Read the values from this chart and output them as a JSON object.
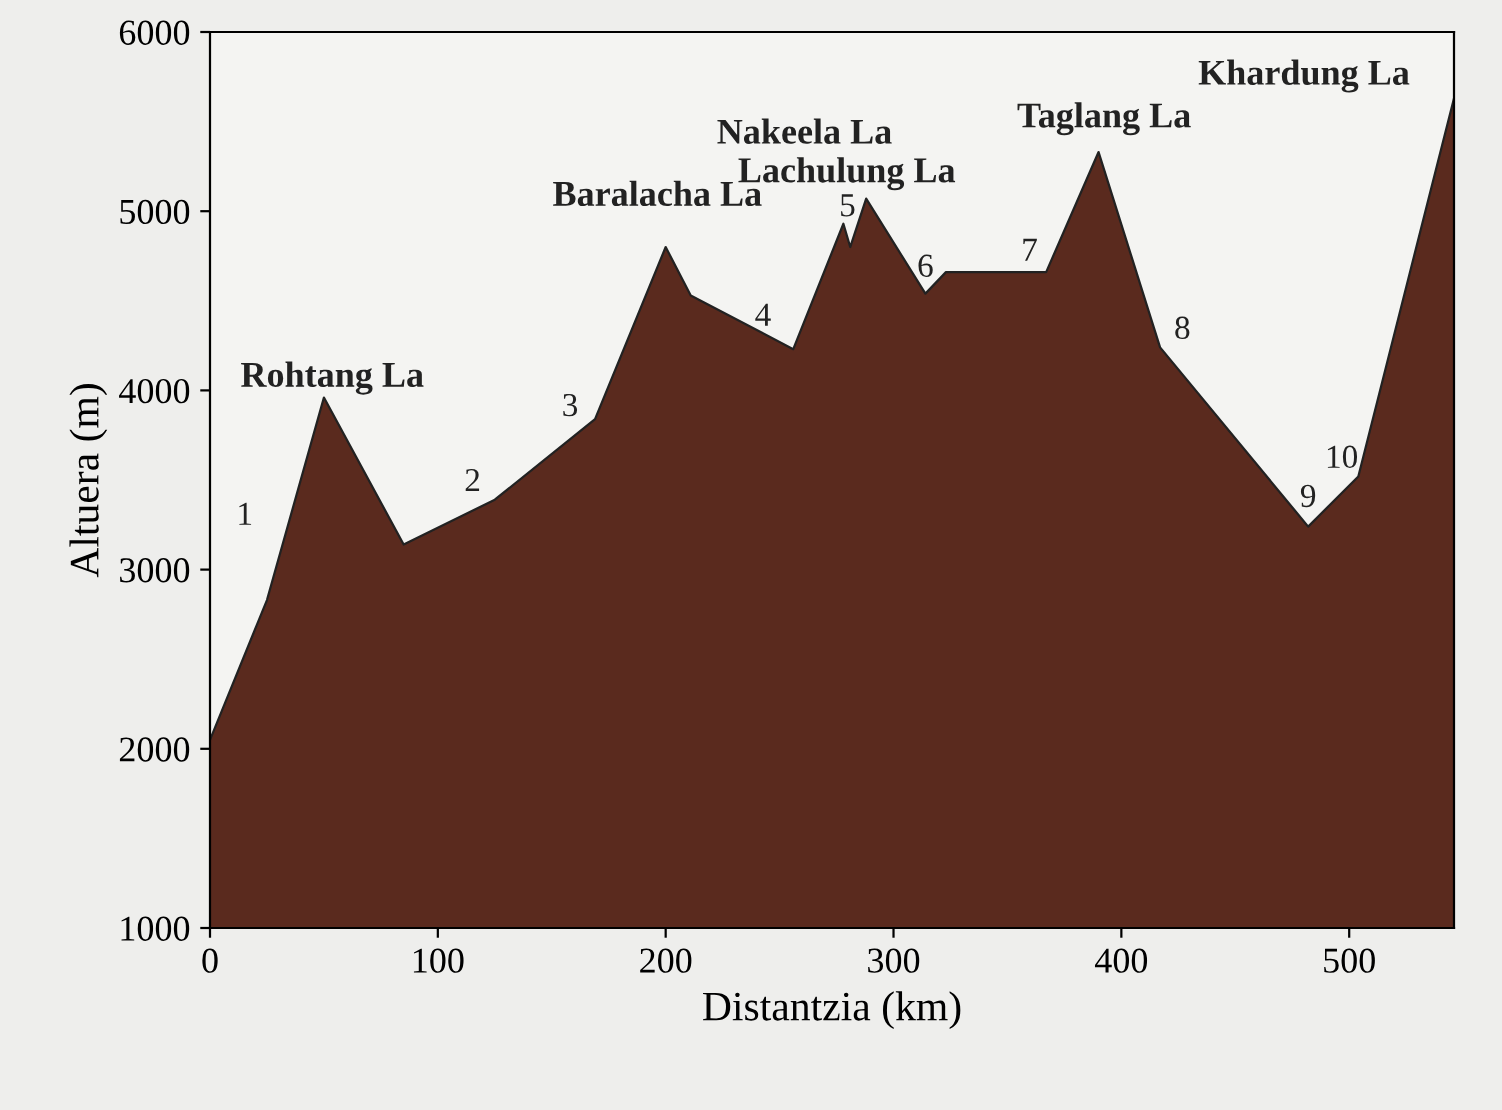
{
  "chart_data": {
    "type": "area",
    "xlabel": "Distantzia (km)",
    "ylabel": "Altuera (m)",
    "x": [
      0,
      25,
      50,
      85,
      125,
      169,
      200,
      211,
      256,
      278,
      281,
      288,
      314,
      323,
      367,
      390,
      417,
      482,
      504,
      546
    ],
    "series": [
      {
        "color": "#5a2a1e",
        "values": [
          2050,
          2830,
          3960,
          3140,
          3390,
          3840,
          4800,
          4530,
          4230,
          4930,
          4800,
          5070,
          4540,
          4660,
          4660,
          5330,
          4240,
          3240,
          3520,
          5630
        ]
      }
    ],
    "xlim": [
      0,
      546
    ],
    "ylim": [
      1000,
      6000
    ],
    "xticks": [
      0,
      100,
      200,
      300,
      400,
      500
    ],
    "yticks": [
      1000,
      2000,
      3000,
      4000,
      5000,
      6000
    ],
    "grid": false,
    "annotations": [
      {
        "text": "Rohtang La",
        "x": 50,
        "y": 3960
      },
      {
        "text": "1",
        "x": 25,
        "y": 2830
      },
      {
        "text": "2",
        "x": 125,
        "y": 3390
      },
      {
        "text": "3",
        "x": 169,
        "y": 3840
      },
      {
        "text": "Baralacha La",
        "x": 200,
        "y": 4800
      },
      {
        "text": "4",
        "x": 211,
        "y": 4530
      },
      {
        "text": "Nakeela La",
        "x": 278,
        "y": 4930
      },
      {
        "text": "Lachulung La",
        "x": 288,
        "y": 5070
      },
      {
        "text": "5",
        "x": 281,
        "y": 4800
      },
      {
        "text": "6",
        "x": 314,
        "y": 4540
      },
      {
        "text": "7",
        "x": 367,
        "y": 4660
      },
      {
        "text": "Taglang La",
        "x": 390,
        "y": 5330
      },
      {
        "text": "8",
        "x": 417,
        "y": 4240
      },
      {
        "text": "9",
        "x": 482,
        "y": 3240
      },
      {
        "text": "10",
        "x": 504,
        "y": 3520
      },
      {
        "text": "Khardung La",
        "x": 546,
        "y": 5630
      }
    ]
  }
}
